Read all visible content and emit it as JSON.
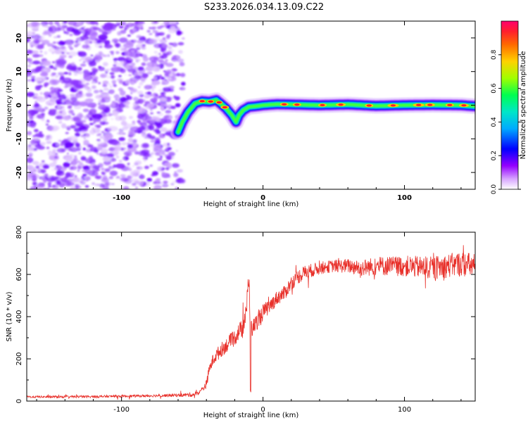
{
  "title": "S233.2026.034.13.09.C22",
  "colors": {
    "trace": "#e8302a",
    "axis": "#000000",
    "noise": "#8a2be2",
    "colormap": [
      "#ffffff",
      "#b400ff",
      "#0000ff",
      "#00c8ff",
      "#00ff64",
      "#b4ff00",
      "#ffc800",
      "#ff5000",
      "#ff0064"
    ]
  },
  "chart_data": [
    {
      "type": "heatmap",
      "xlabel": "Height of straight line (km)",
      "ylabel": "Frequency (Hz)",
      "xlim": [
        -167,
        150
      ],
      "ylim": [
        -25,
        25
      ],
      "xticks": [
        -100,
        0,
        100
      ],
      "yticks": [
        -20,
        -10,
        0,
        10,
        20
      ],
      "noise_region": [
        -167,
        -60
      ],
      "ridge": {
        "x": [
          -60,
          -57,
          -53,
          -48,
          -43,
          -38,
          -33,
          -30,
          -26,
          -22,
          -19,
          -17,
          -14,
          -10,
          -5,
          0,
          10,
          20,
          40,
          60,
          80,
          100,
          120,
          140,
          150
        ],
        "y": [
          -8,
          -5,
          -2,
          0.5,
          1.2,
          1.0,
          1.5,
          0.5,
          -1.0,
          -3.0,
          -5.0,
          -3.0,
          -1.5,
          -0.5,
          -0.3,
          0,
          0.3,
          0.2,
          0,
          0.2,
          -0.2,
          0,
          0.1,
          0,
          -0.3
        ]
      },
      "colorbar": {
        "label": "Normalized spectral amplitude",
        "range": [
          0,
          1
        ],
        "ticks": [
          "0.0",
          "0.2",
          "0.4",
          "0.6",
          "0.8"
        ]
      }
    },
    {
      "type": "line",
      "xlabel": "Height of straight line (km)",
      "ylabel": "SNR (10 * v/v)",
      "xlim": [
        -167,
        150
      ],
      "ylim": [
        0,
        800
      ],
      "xticks": [
        -100,
        0,
        100
      ],
      "yticks": [
        0,
        200,
        400,
        600,
        800
      ],
      "series": [
        {
          "name": "SNR",
          "x": [
            -167,
            -140,
            -110,
            -80,
            -60,
            -50,
            -45,
            -40,
            -38,
            -35,
            -30,
            -25,
            -20,
            -17,
            -14,
            -11,
            -10,
            -9,
            -8,
            -5,
            0,
            5,
            10,
            15,
            20,
            25,
            30,
            40,
            50,
            60,
            70,
            80,
            100,
            120,
            140,
            150
          ],
          "y": [
            20,
            20,
            22,
            25,
            28,
            30,
            40,
            80,
            150,
            200,
            240,
            270,
            300,
            330,
            350,
            480,
            560,
            360,
            340,
            370,
            420,
            450,
            490,
            510,
            560,
            590,
            610,
            630,
            640,
            640,
            630,
            640,
            640,
            630,
            650,
            640
          ],
          "noise": [
            5,
            5,
            6,
            6,
            8,
            10,
            10,
            20,
            25,
            30,
            35,
            35,
            40,
            40,
            45,
            60,
            60,
            50,
            40,
            40,
            40,
            35,
            35,
            35,
            35,
            35,
            35,
            30,
            30,
            35,
            40,
            45,
            50,
            55,
            60,
            60
          ]
        }
      ],
      "annotations": [
        {
          "x": -9,
          "y": 40,
          "label": ""
        },
        {
          "x": -10,
          "y": 590,
          "label": ""
        }
      ]
    }
  ]
}
